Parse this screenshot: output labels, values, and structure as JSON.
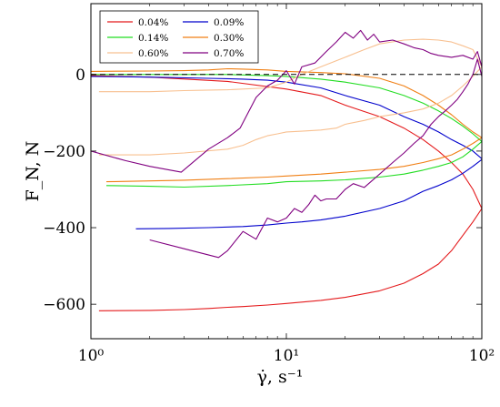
{
  "chart_data": {
    "type": "line",
    "xscale": "log",
    "xlim": [
      1,
      100
    ],
    "ylim": [
      -690,
      185
    ],
    "xlabel": "γ̇, s⁻¹",
    "ylabel": "F_N, N",
    "xticks": [
      {
        "value": 1,
        "label": "10⁰"
      },
      {
        "value": 10,
        "label": "10¹"
      },
      {
        "value": 100,
        "label": "10²"
      }
    ],
    "yticks": [
      {
        "value": 0,
        "label": "0"
      },
      {
        "value": -200,
        "label": "−200"
      },
      {
        "value": -400,
        "label": "−400"
      },
      {
        "value": -600,
        "label": "−600"
      }
    ],
    "reference_line": {
      "y": 0,
      "style": "dashed",
      "color": "#000000"
    },
    "legend": {
      "placement": "top-left",
      "columns": 2
    },
    "grid": false,
    "series": [
      {
        "name": "0.04%",
        "color": "#e41a1c",
        "x": [
          1.1,
          2,
          3,
          4,
          5,
          6,
          8,
          10,
          15,
          20,
          30,
          40,
          50,
          60,
          70,
          80,
          90,
          100
        ],
        "y": [
          -617,
          -616,
          -614,
          -611,
          -608,
          -606,
          -602,
          -598,
          -590,
          -582,
          -565,
          -545,
          -520,
          -495,
          -460,
          -420,
          -385,
          -350
        ]
      },
      {
        "name": "0.04%",
        "color": "#e41a1c",
        "x": [
          1,
          2,
          5,
          10,
          15,
          20,
          30,
          40,
          50,
          60,
          70,
          80,
          90,
          100
        ],
        "y": [
          -3,
          -7,
          -18,
          -38,
          -55,
          -80,
          -110,
          -140,
          -170,
          -200,
          -230,
          -260,
          -300,
          -350
        ]
      },
      {
        "name": "0.09%",
        "color": "#0000cc",
        "x": [
          1.7,
          2.5,
          4,
          6,
          8,
          10,
          12,
          15,
          20,
          30,
          40,
          50,
          60,
          70,
          80,
          90,
          100
        ],
        "y": [
          -403,
          -402,
          -400,
          -397,
          -393,
          -388,
          -385,
          -380,
          -370,
          -350,
          -330,
          -305,
          -290,
          -275,
          -258,
          -240,
          -222
        ]
      },
      {
        "name": "0.09%",
        "color": "#0000cc",
        "x": [
          1,
          2,
          4,
          6,
          8,
          10,
          15,
          20,
          30,
          40,
          50,
          60,
          70,
          80,
          90,
          100
        ],
        "y": [
          -5,
          -7,
          -10,
          -12,
          -15,
          -20,
          -35,
          -55,
          -80,
          -110,
          -130,
          -150,
          -170,
          -185,
          -200,
          -220
        ]
      },
      {
        "name": "0.14%",
        "color": "#22dd22",
        "x": [
          1.2,
          2,
          3,
          5,
          8,
          10,
          15,
          20,
          30,
          40,
          50,
          60,
          70,
          80,
          90,
          100
        ],
        "y": [
          -290,
          -292,
          -294,
          -290,
          -285,
          -280,
          -278,
          -275,
          -268,
          -260,
          -250,
          -240,
          -230,
          -215,
          -195,
          -175
        ]
      },
      {
        "name": "0.14%",
        "color": "#22dd22",
        "x": [
          1,
          2,
          5,
          8,
          10,
          15,
          20,
          30,
          40,
          50,
          60,
          70,
          80,
          90,
          100
        ],
        "y": [
          0,
          0,
          0,
          -3,
          -5,
          -12,
          -20,
          -35,
          -55,
          -75,
          -95,
          -115,
          -135,
          -155,
          -175
        ]
      },
      {
        "name": "0.30%",
        "color": "#f07f14",
        "x": [
          1.2,
          2,
          3,
          5,
          8,
          10,
          15,
          20,
          30,
          40,
          50,
          60,
          70,
          80,
          90,
          100
        ],
        "y": [
          -280,
          -278,
          -276,
          -272,
          -268,
          -265,
          -260,
          -255,
          -248,
          -240,
          -230,
          -220,
          -210,
          -195,
          -180,
          -165
        ]
      },
      {
        "name": "0.30%",
        "color": "#f07f14",
        "x": [
          1,
          2,
          3,
          4,
          5,
          6,
          8,
          10,
          15,
          20,
          30,
          40,
          50,
          60,
          70,
          80,
          90,
          100
        ],
        "y": [
          8,
          9,
          10,
          12,
          15,
          14,
          12,
          8,
          5,
          2,
          -10,
          -30,
          -55,
          -80,
          -105,
          -130,
          -150,
          -165
        ]
      },
      {
        "name": "0.60%",
        "color": "#f8c090",
        "x": [
          1.1,
          2,
          3,
          5,
          6,
          7,
          8,
          9,
          10,
          12,
          15,
          18,
          20,
          25,
          30,
          40,
          50,
          60,
          70,
          80,
          90,
          100
        ],
        "y": [
          -210,
          -210,
          -205,
          -195,
          -185,
          -170,
          -160,
          -155,
          -150,
          -148,
          -145,
          -140,
          -130,
          -120,
          -110,
          -100,
          -90,
          -75,
          -55,
          -30,
          -5,
          20
        ]
      },
      {
        "name": "0.60%",
        "color": "#f8c090",
        "x": [
          1.1,
          2,
          3,
          5,
          8,
          10,
          12,
          15,
          20,
          25,
          30,
          40,
          50,
          60,
          70,
          80,
          90,
          100
        ],
        "y": [
          -45,
          -45,
          -42,
          -40,
          -35,
          -20,
          0,
          20,
          45,
          65,
          80,
          90,
          92,
          90,
          85,
          75,
          65,
          20
        ]
      },
      {
        "name": "0.70%",
        "color": "#800080",
        "x": [
          1,
          1.5,
          2,
          2.9,
          4,
          5,
          5.8,
          7,
          8,
          9,
          10,
          11,
          12,
          14,
          16,
          18,
          20,
          22,
          24,
          26,
          28,
          30,
          35,
          40,
          45,
          50,
          55,
          60,
          70,
          80,
          90,
          95,
          100
        ],
        "y": [
          -200,
          -225,
          -240,
          -255,
          -195,
          -165,
          -140,
          -60,
          -30,
          -15,
          10,
          -25,
          20,
          30,
          60,
          85,
          110,
          95,
          115,
          90,
          105,
          85,
          90,
          80,
          70,
          65,
          55,
          50,
          45,
          50,
          40,
          60,
          20
        ]
      },
      {
        "name": "0.70%",
        "color": "#800080",
        "x": [
          2,
          3,
          4.5,
          5,
          6,
          7,
          8,
          9,
          10,
          11,
          12,
          13,
          14,
          15,
          16,
          18,
          20,
          22,
          25,
          30,
          35,
          40,
          45,
          50,
          55,
          60,
          65,
          70,
          75,
          80,
          85,
          90,
          95,
          100
        ],
        "y": [
          -432,
          -455,
          -478,
          -460,
          -410,
          -430,
          -375,
          -385,
          -375,
          -350,
          -360,
          -340,
          -315,
          -330,
          -325,
          -325,
          -300,
          -285,
          -295,
          -260,
          -230,
          -205,
          -180,
          -160,
          -130,
          -110,
          -95,
          -80,
          -65,
          -45,
          -25,
          0,
          40,
          -5
        ]
      }
    ]
  }
}
